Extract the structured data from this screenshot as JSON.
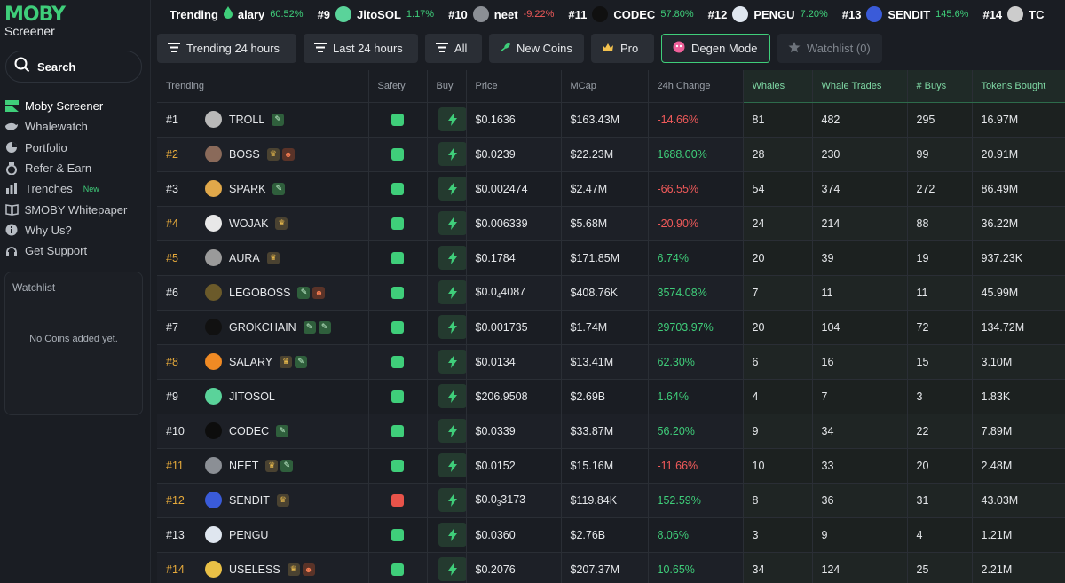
{
  "app": {
    "logo": "MOBY",
    "subtitle": "Screener"
  },
  "sidebar": {
    "search_label": "Search",
    "items": [
      {
        "label": "Moby Screener",
        "icon": "moby-icon",
        "active": true
      },
      {
        "label": "Whalewatch",
        "icon": "whale-icon"
      },
      {
        "label": "Portfolio",
        "icon": "pie-chart-icon"
      },
      {
        "label": "Refer & Earn",
        "icon": "medal-icon"
      },
      {
        "label": "Trenches",
        "icon": "bar-chart-icon",
        "badge": "New"
      },
      {
        "label": "$MOBY Whitepaper",
        "icon": "book-icon"
      },
      {
        "label": "Why Us?",
        "icon": "info-icon"
      },
      {
        "label": "Get Support",
        "icon": "headset-icon"
      }
    ],
    "watchlist": {
      "title": "Watchlist",
      "empty": "No Coins added yet."
    }
  },
  "ticker": {
    "title": "Trending",
    "items": [
      {
        "rank": "",
        "name": "alary",
        "change": "60.52%",
        "dir": "pos",
        "color": "#1a1d23"
      },
      {
        "rank": "#9",
        "name": "JitoSOL",
        "change": "1.17%",
        "dir": "pos",
        "color": "#5ad39a"
      },
      {
        "rank": "#10",
        "name": "neet",
        "change": "-9.22%",
        "dir": "neg",
        "color": "#8b8f95"
      },
      {
        "rank": "#11",
        "name": "CODEC",
        "change": "57.80%",
        "dir": "pos",
        "color": "#101010"
      },
      {
        "rank": "#12",
        "name": "PENGU",
        "change": "7.20%",
        "dir": "pos",
        "color": "#dfe6ef"
      },
      {
        "rank": "#13",
        "name": "SENDIT",
        "change": "145.6%",
        "dir": "pos",
        "color": "#3a5bd9"
      },
      {
        "rank": "#14",
        "name": "TC",
        "change": "",
        "dir": "pos",
        "color": "#cccccc"
      }
    ]
  },
  "filters": {
    "trending": "Trending 24 hours",
    "last": "Last 24 hours",
    "all": "All",
    "new_coins": "New Coins",
    "pro": "Pro",
    "degen": "Degen Mode",
    "watchlist": "Watchlist (0)"
  },
  "table": {
    "headers": {
      "trending": "Trending",
      "safety": "Safety",
      "buy": "Buy",
      "price": "Price",
      "mcap": "MCap",
      "change": "24h Change",
      "whales": "Whales",
      "whale_trades": "Whale Trades",
      "buys": "# Buys",
      "tokens_bought": "Tokens Bought"
    },
    "rows": [
      {
        "rank": "#1",
        "pro": false,
        "name": "TROLL",
        "avatar": "#b9b9b9",
        "badges": [
          "new"
        ],
        "safe": "#3fce7a",
        "price": "$0.1636",
        "mcap": "$163.43M",
        "change": "-14.66%",
        "dir": "neg",
        "whales": "81",
        "trades": "482",
        "buys": "295",
        "tokens": "16.97M"
      },
      {
        "rank": "#2",
        "pro": true,
        "name": "BOSS",
        "avatar": "#8a6a5a",
        "badges": [
          "pro",
          "degen"
        ],
        "safe": "#3fce7a",
        "price": "$0.0239",
        "mcap": "$22.23M",
        "change": "1688.00%",
        "dir": "pos",
        "whales": "28",
        "trades": "230",
        "buys": "99",
        "tokens": "20.91M"
      },
      {
        "rank": "#3",
        "pro": false,
        "name": "SPARK",
        "avatar": "#e0a84a",
        "badges": [
          "new"
        ],
        "safe": "#3fce7a",
        "price": "$0.002474",
        "mcap": "$2.47M",
        "change": "-66.55%",
        "dir": "neg",
        "whales": "54",
        "trades": "374",
        "buys": "272",
        "tokens": "86.49M"
      },
      {
        "rank": "#4",
        "pro": true,
        "name": "WOJAK",
        "avatar": "#e8e8e8",
        "badges": [
          "pro"
        ],
        "safe": "#3fce7a",
        "price": "$0.006339",
        "mcap": "$5.68M",
        "change": "-20.90%",
        "dir": "neg",
        "whales": "24",
        "trades": "214",
        "buys": "88",
        "tokens": "36.22M"
      },
      {
        "rank": "#5",
        "pro": true,
        "name": "AURA",
        "avatar": "#9a9a9a",
        "badges": [
          "pro"
        ],
        "safe": "#3fce7a",
        "price": "$0.1784",
        "mcap": "$171.85M",
        "change": "6.74%",
        "dir": "pos",
        "whales": "20",
        "trades": "39",
        "buys": "19",
        "tokens": "937.23K"
      },
      {
        "rank": "#6",
        "pro": false,
        "name": "LEGOBOSS",
        "avatar": "#6b5a2a",
        "badges": [
          "new",
          "degen"
        ],
        "safe": "#3fce7a",
        "price_main": "$0.0",
        "price_sub": "4",
        "price_tail": "4087",
        "mcap": "$408.76K",
        "change": "3574.08%",
        "dir": "pos",
        "whales": "7",
        "trades": "11",
        "buys": "11",
        "tokens": "45.99M"
      },
      {
        "rank": "#7",
        "pro": false,
        "name": "GROKCHAIN",
        "avatar": "#111111",
        "badges": [
          "new",
          "new"
        ],
        "safe": "#3fce7a",
        "price": "$0.001735",
        "mcap": "$1.74M",
        "change": "29703.97%",
        "dir": "pos",
        "whales": "20",
        "trades": "104",
        "buys": "72",
        "tokens": "134.72M"
      },
      {
        "rank": "#8",
        "pro": true,
        "name": "SALARY",
        "avatar": "#f08a24",
        "badges": [
          "pro",
          "new"
        ],
        "safe": "#3fce7a",
        "price": "$0.0134",
        "mcap": "$13.41M",
        "change": "62.30%",
        "dir": "pos",
        "whales": "6",
        "trades": "16",
        "buys": "15",
        "tokens": "3.10M"
      },
      {
        "rank": "#9",
        "pro": false,
        "name": "JITOSOL",
        "avatar": "#5ad39a",
        "badges": [],
        "safe": "#3fce7a",
        "price": "$206.9508",
        "mcap": "$2.69B",
        "change": "1.64%",
        "dir": "pos",
        "whales": "4",
        "trades": "7",
        "buys": "3",
        "tokens": "1.83K"
      },
      {
        "rank": "#10",
        "pro": false,
        "name": "CODEC",
        "avatar": "#0d0d0d",
        "badges": [
          "new"
        ],
        "safe": "#3fce7a",
        "price": "$0.0339",
        "mcap": "$33.87M",
        "change": "56.20%",
        "dir": "pos",
        "whales": "9",
        "trades": "34",
        "buys": "22",
        "tokens": "7.89M"
      },
      {
        "rank": "#11",
        "pro": true,
        "name": "NEET",
        "avatar": "#8b8f95",
        "badges": [
          "pro",
          "new"
        ],
        "safe": "#3fce7a",
        "price": "$0.0152",
        "mcap": "$15.16M",
        "change": "-11.66%",
        "dir": "neg",
        "whales": "10",
        "trades": "33",
        "buys": "20",
        "tokens": "2.48M"
      },
      {
        "rank": "#12",
        "pro": true,
        "name": "SENDIT",
        "avatar": "#3a5bd9",
        "badges": [
          "pro"
        ],
        "safe": "#e8534a",
        "price_main": "$0.0",
        "price_sub": "3",
        "price_tail": "3173",
        "mcap": "$119.84K",
        "change": "152.59%",
        "dir": "pos",
        "whales": "8",
        "trades": "36",
        "buys": "31",
        "tokens": "43.03M"
      },
      {
        "rank": "#13",
        "pro": false,
        "name": "PENGU",
        "avatar": "#dfe6ef",
        "badges": [],
        "safe": "#3fce7a",
        "price": "$0.0360",
        "mcap": "$2.76B",
        "change": "8.06%",
        "dir": "pos",
        "whales": "3",
        "trades": "9",
        "buys": "4",
        "tokens": "1.21M"
      },
      {
        "rank": "#14",
        "pro": true,
        "name": "USELESS",
        "avatar": "#e9c046",
        "badges": [
          "pro",
          "degen"
        ],
        "safe": "#3fce7a",
        "price": "$0.2076",
        "mcap": "$207.37M",
        "change": "10.65%",
        "dir": "pos",
        "whales": "34",
        "trades": "124",
        "buys": "25",
        "tokens": "2.21M"
      }
    ]
  }
}
